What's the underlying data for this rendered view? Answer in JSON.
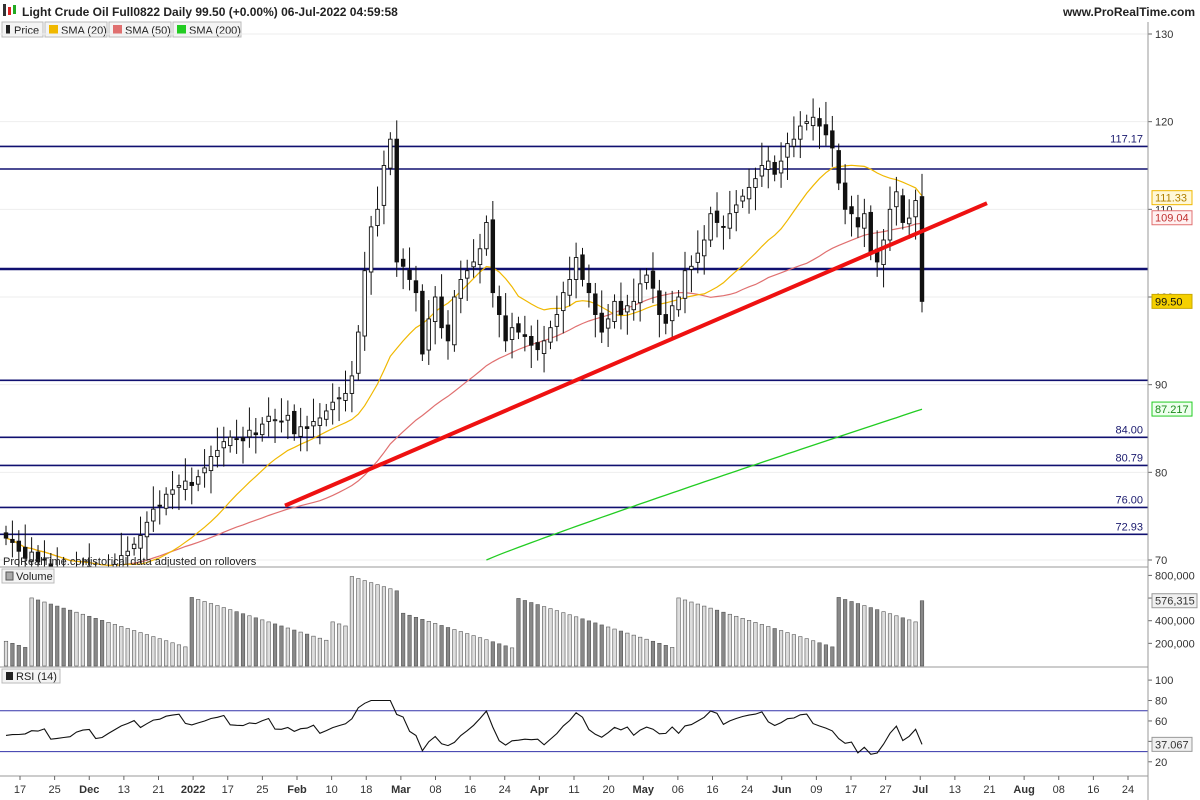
{
  "header": {
    "title": "Light Crude Oil Full0822 Daily 99.50 (+0.00%) 06-Jul-2022 04:59:58",
    "site": "www.ProRealTime.com"
  },
  "legend": {
    "price": "Price",
    "sma20": "SMA (20)",
    "sma50": "SMA (50)",
    "sma200": "SMA (200)",
    "volume": "Volume",
    "rsi": "RSI (14)"
  },
  "watermark": "ProRealTime.com",
  "note": "Historical data adjusted on rollovers",
  "colors": {
    "sma20": "#f0b800",
    "sma50": "#e07070",
    "sma200": "#22cc22",
    "trendline": "#ee1111",
    "level": "#101070",
    "rsi_band": "#3333aa"
  },
  "chart_data": {
    "type": "candlestick",
    "price_axis": {
      "ticks": [
        70,
        80,
        90,
        100,
        110,
        120,
        130
      ],
      "range": [
        70,
        130
      ]
    },
    "x_axis_labels": [
      "17",
      "25",
      "Dec",
      "13",
      "21",
      "2022",
      "17",
      "25",
      "Feb",
      "10",
      "18",
      "Mar",
      "08",
      "16",
      "24",
      "Apr",
      "11",
      "20",
      "May",
      "06",
      "16",
      "24",
      "Jun",
      "09",
      "17",
      "27",
      "Jul",
      "13",
      "21",
      "Aug",
      "08",
      "16",
      "24"
    ],
    "levels": [
      {
        "value": 117.17,
        "label": "117.17"
      },
      {
        "value": 114.6,
        "label": ""
      },
      {
        "value": 103.2,
        "label": ""
      },
      {
        "value": 90.5,
        "label": ""
      },
      {
        "value": 84.0,
        "label": "84.00"
      },
      {
        "value": 80.79,
        "label": "80.79"
      },
      {
        "value": 76.0,
        "label": "76.00"
      },
      {
        "value": 72.93,
        "label": "72.93"
      }
    ],
    "last_values": {
      "price": "99.50",
      "sma20": "111.33",
      "sma50": "109.04",
      "sma200": "87.217"
    },
    "trendline": {
      "start": [
        0,
        76.2
      ],
      "end": [
        1,
        110.7
      ]
    },
    "sma200": {
      "start": 70.0,
      "end": 87.2
    },
    "closes": [
      72.5,
      72.0,
      71.0,
      70.2,
      70.9,
      69.8,
      70.0,
      69.0,
      68.5,
      68.0,
      67.5,
      68.8,
      69.0,
      68.5,
      68.0,
      67.5,
      68.5,
      69.5,
      70.5,
      71.0,
      71.8,
      72.8,
      74.3,
      75.8,
      76.2,
      77.5,
      78.0,
      78.5,
      79.0,
      78.5,
      79.5,
      80.5,
      81.8,
      82.5,
      83.5,
      84.0,
      83.8,
      83.6,
      84.8,
      84.3,
      85.5,
      86.4,
      86.0,
      85.8,
      86.5,
      84.4,
      85.2,
      85.0,
      85.8,
      86.2,
      87.0,
      88.0,
      88.5,
      89.0,
      91.0,
      96.0,
      103.0,
      108.0,
      110.0,
      115.0,
      118.0,
      104.0,
      103.5,
      102.0,
      100.5,
      93.5,
      97.5,
      100.0,
      96.5,
      95.0,
      100.0,
      102.0,
      103.0,
      104.0,
      105.5,
      108.5,
      100.5,
      98.0,
      95.0,
      96.5,
      96.0,
      95.5,
      94.5,
      94.0,
      95.0,
      96.5,
      98.0,
      100.5,
      102.0,
      104.5,
      102.0,
      100.5,
      98.0,
      96.0,
      97.5,
      99.5,
      98.0,
      99.0,
      99.5,
      101.5,
      102.5,
      101.0,
      98.0,
      97.0,
      99.0,
      100.0,
      103.0,
      103.5,
      105.0,
      106.5,
      109.5,
      108.5,
      108.0,
      109.5,
      110.5,
      111.5,
      112.5,
      113.5,
      115.0,
      115.5,
      114.0,
      115.5,
      117.5,
      118.0,
      119.5,
      120.0,
      120.5,
      119.5,
      118.5,
      117.0,
      113.0,
      110.0,
      109.5,
      108.0,
      109.5,
      105.0,
      104.0,
      106.5,
      110.0,
      112.0,
      108.5,
      109.0,
      111.0,
      99.5
    ],
    "volume": {
      "ticks": [
        200000,
        400000,
        600000,
        800000
      ],
      "labels": [
        "200,000",
        "400,000",
        "600,000",
        "800,000"
      ],
      "last": "576,315",
      "last_value": 576315
    },
    "rsi": {
      "ticks": [
        20,
        40,
        60,
        80,
        100
      ],
      "overbought": 70,
      "oversold": 30,
      "last": "37.067",
      "last_value": 37.067
    }
  }
}
